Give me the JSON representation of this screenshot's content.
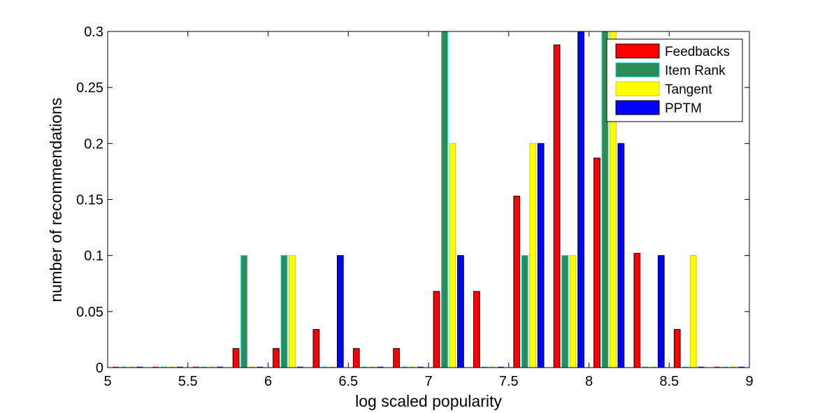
{
  "chart_data": {
    "type": "bar",
    "title": "",
    "xlabel": "log scaled popularity",
    "ylabel": "number of recommendations",
    "xlim": [
      5,
      9
    ],
    "ylim": [
      0,
      0.3
    ],
    "xticks": [
      "5",
      "5.5",
      "6",
      "6.5",
      "7",
      "7.5",
      "8",
      "8.5",
      "9"
    ],
    "yticks": [
      "0",
      "0.05",
      "0.1",
      "0.15",
      "0.2",
      "0.25",
      "0.3"
    ],
    "bin_centers": [
      5.125,
      5.375,
      5.625,
      5.875,
      6.125,
      6.375,
      6.625,
      6.875,
      7.125,
      7.375,
      7.625,
      7.875,
      8.125,
      8.375,
      8.625,
      8.875
    ],
    "legend_position": "top-right",
    "series": [
      {
        "name": "Feedbacks",
        "color": "#ff0000",
        "values": [
          0,
          0,
          0,
          0.017,
          0.017,
          0.034,
          0.017,
          0.017,
          0.068,
          0.068,
          0.153,
          0.288,
          0.187,
          0.102,
          0.034,
          0
        ]
      },
      {
        "name": "Item Rank",
        "color": "#2e8b57",
        "values": [
          0,
          0,
          0,
          0.1,
          0.1,
          0,
          0,
          0,
          0.3,
          0,
          0.1,
          0.1,
          0.3,
          0,
          0,
          0
        ]
      },
      {
        "name": "Tangent",
        "color": "#ffff00",
        "values": [
          0,
          0,
          0,
          0,
          0.1,
          0,
          0,
          0,
          0.2,
          0,
          0.2,
          0.1,
          0.3,
          0,
          0.1,
          0
        ]
      },
      {
        "name": "PPTM",
        "color": "#0000ff",
        "values": [
          0,
          0,
          0,
          0,
          0,
          0.1,
          0,
          0,
          0.1,
          0,
          0.2,
          0.3,
          0.2,
          0.1,
          0,
          0
        ]
      }
    ],
    "grid": false
  }
}
